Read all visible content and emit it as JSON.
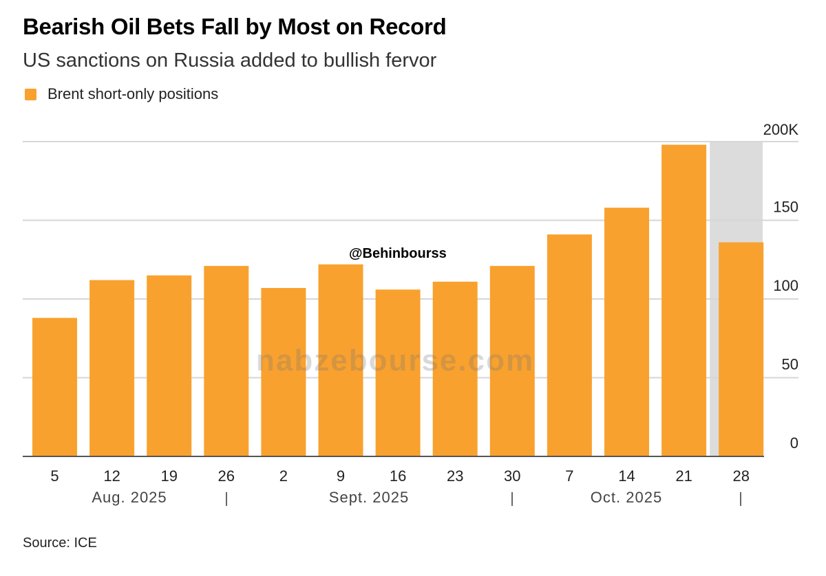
{
  "title": "Bearish Oil Bets Fall by Most on Record",
  "subtitle": "US sanctions on Russia added to bullish fervor",
  "source": "Source: ICE",
  "watermark": {
    "handle": "@Behinbourss",
    "site": "nabzebourse.com"
  },
  "colors": {
    "bar": "#f9a12e",
    "highlight": "#dcdcdc",
    "grid": "#d6d6d6",
    "axis": "#555555"
  },
  "chart_data": {
    "type": "bar",
    "title": "Bearish Oil Bets Fall by Most on Record",
    "legend": [
      "Brent short-only positions"
    ],
    "legend_position": "top-left",
    "categories": [
      "5",
      "12",
      "19",
      "26",
      "2",
      "9",
      "16",
      "23",
      "30",
      "7",
      "14",
      "21",
      "28"
    ],
    "month_labels": [
      "Aug. 2025",
      "Sept. 2025",
      "Oct. 2025"
    ],
    "series": [
      {
        "name": "Brent short-only positions",
        "values": [
          88,
          112,
          115,
          121,
          107,
          122,
          106,
          111,
          121,
          141,
          158,
          198,
          136
        ]
      }
    ],
    "unit": "thousands",
    "ylim": [
      0,
      200
    ],
    "yticks": [
      0,
      50,
      100,
      150,
      200
    ],
    "ytick_labels": [
      "0",
      "50",
      "100",
      "150",
      "200K"
    ],
    "y_axis_side": "right",
    "highlighted_category": "28",
    "grid": true
  }
}
